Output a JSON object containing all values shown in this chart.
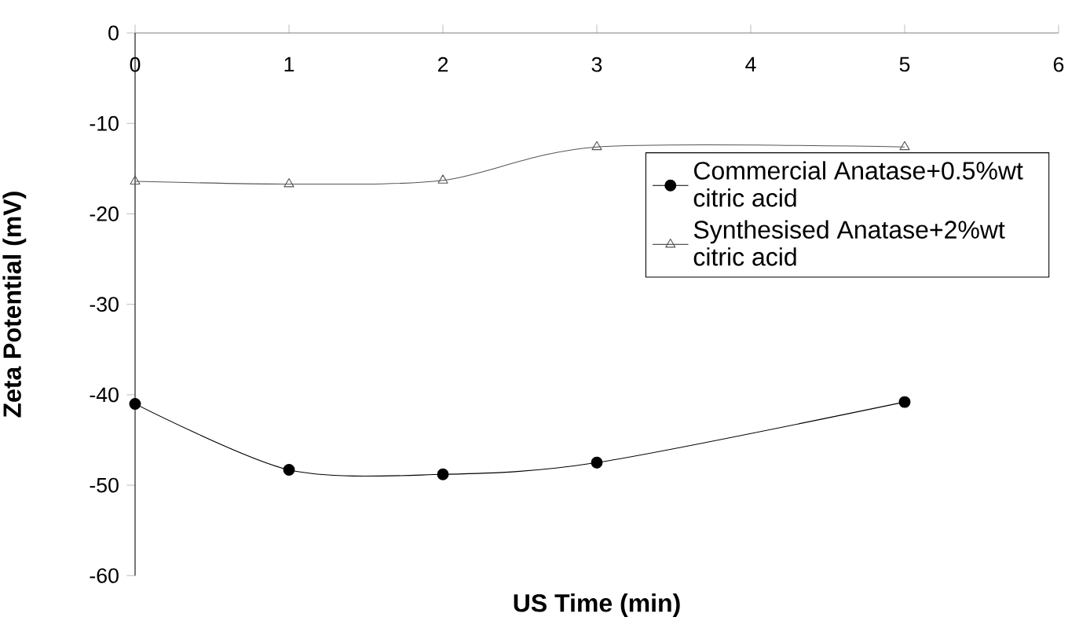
{
  "chart_data": {
    "type": "line",
    "xlabel": "US Time (min)",
    "ylabel": "Zeta Potential (mV)",
    "xlim": [
      0,
      6
    ],
    "xticks": [
      0,
      1,
      2,
      3,
      4,
      5,
      6
    ],
    "ylim": [
      -60,
      0
    ],
    "yticks": [
      -60,
      -50,
      -40,
      -30,
      -20,
      -10,
      0
    ],
    "x": [
      0,
      1,
      2,
      3,
      5
    ],
    "series": [
      {
        "name": "Commercial Anatase+0.5%wt citric acid",
        "color": "#000000",
        "marker": "circle",
        "values": [
          -41.0,
          -48.3,
          -48.8,
          -47.5,
          -40.8
        ]
      },
      {
        "name": "Synthesised Anatase+2%wt citric acid",
        "color": "#555555",
        "marker": "triangle",
        "values": [
          -16.4,
          -16.7,
          -16.3,
          -12.6,
          -12.6
        ]
      }
    ],
    "legend": "right",
    "grid": false,
    "line_style": "solid"
  }
}
